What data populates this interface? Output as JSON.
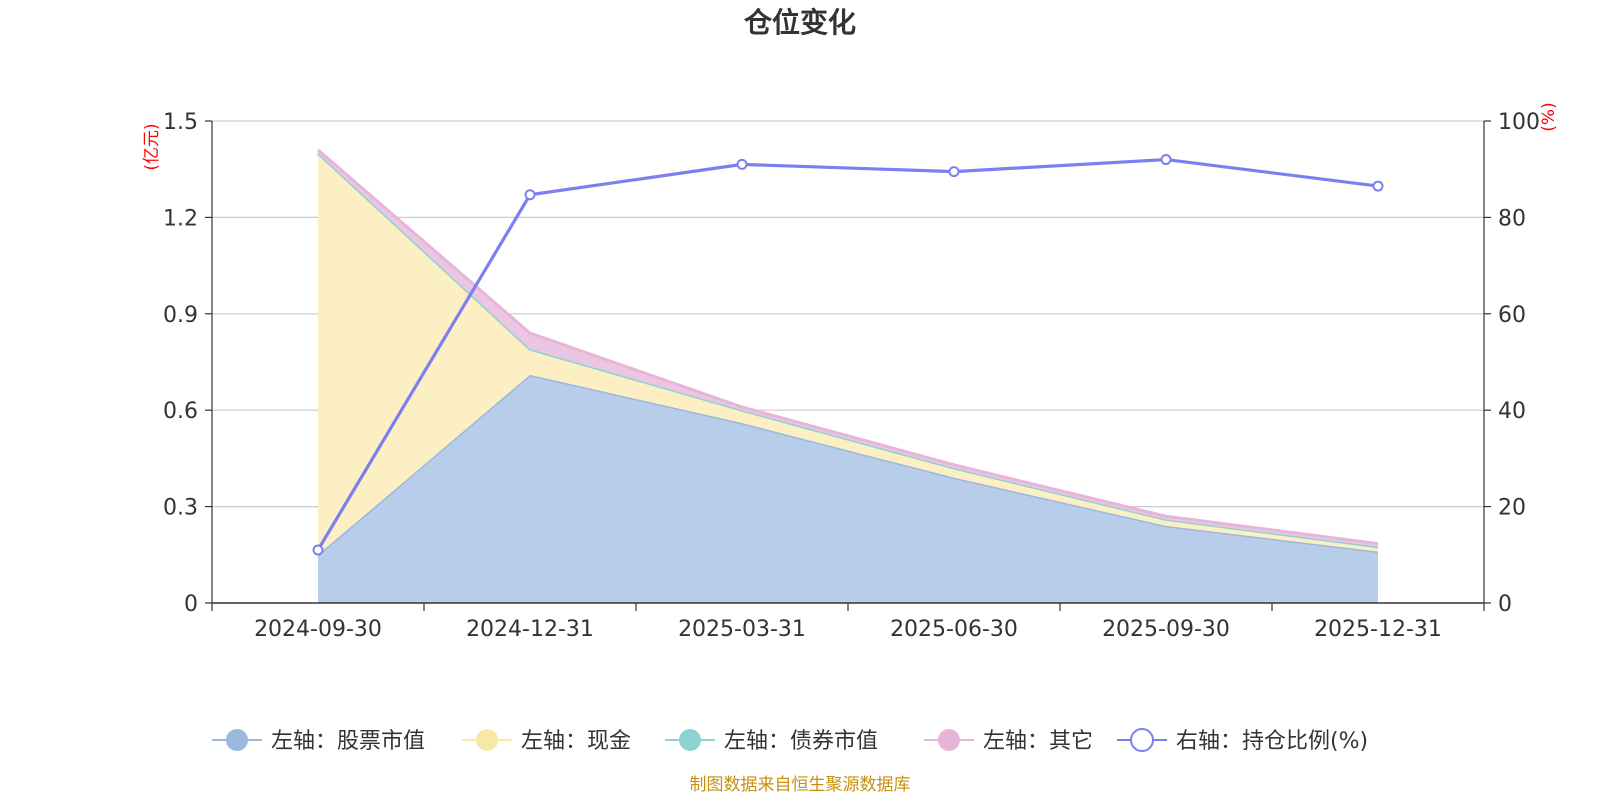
{
  "chart_data": {
    "type": "area",
    "title": "仓位变化",
    "categories": [
      "2024-09-30",
      "2024-12-31",
      "2025-03-31",
      "2025-06-30",
      "2025-09-30",
      "2025-12-31"
    ],
    "left_axis": {
      "unit_label": "(亿元)",
      "ylim": [
        0,
        1.5
      ],
      "ticks": [
        "0",
        "0.3",
        "0.6",
        "0.9",
        "1.2",
        "1.5"
      ]
    },
    "right_axis": {
      "unit_label": "(%)",
      "ylim": [
        0,
        100
      ],
      "ticks": [
        "0",
        "20",
        "40",
        "60",
        "80",
        "100"
      ]
    },
    "grid": true,
    "legend_position": "bottom",
    "series": [
      {
        "name": "左轴：股票市值",
        "axis": "left",
        "stacked": true,
        "color": "#9ab8e0",
        "fill": "#b8cdea",
        "values": [
          0.15,
          0.71,
          0.56,
          0.39,
          0.24,
          0.16
        ]
      },
      {
        "name": "左轴：现金",
        "axis": "left",
        "stacked": true,
        "color": "#f7e8a6",
        "fill": "#fbefc3",
        "values": [
          1.25,
          0.08,
          0.04,
          0.03,
          0.02,
          0.015
        ]
      },
      {
        "name": "左轴：债券市值",
        "axis": "left",
        "stacked": true,
        "color": "#8fd3d1",
        "fill": "#bfe5e4",
        "values": [
          0,
          0,
          0,
          0,
          0,
          0
        ]
      },
      {
        "name": "左轴：其它",
        "axis": "left",
        "stacked": true,
        "color": "#e6b5d9",
        "fill": "#ebc6e2",
        "values": [
          0.01,
          0.05,
          0.01,
          0.01,
          0.01,
          0.01
        ]
      },
      {
        "name": "右轴：持仓比例(%)",
        "axis": "right",
        "type": "line",
        "color": "#7b7ff0",
        "values": [
          11,
          84.7,
          91,
          89.5,
          92,
          86.5
        ]
      }
    ]
  },
  "source_note": "制图数据来自恒生聚源数据库"
}
